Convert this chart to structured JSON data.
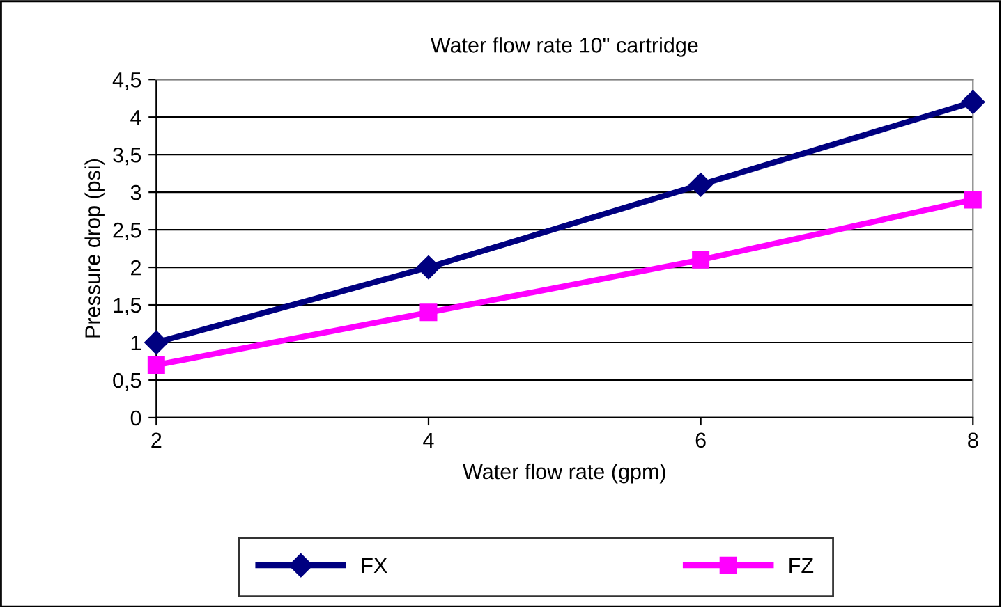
{
  "chart_data": {
    "type": "line",
    "title": "Water flow rate 10\" cartridge",
    "xlabel": "Water flow rate (gpm)",
    "ylabel": "Pressure drop (psi)",
    "x": [
      2,
      4,
      6,
      8
    ],
    "series": [
      {
        "name": "FX",
        "color": "#000080",
        "values": [
          1.0,
          2.0,
          3.1,
          4.2
        ],
        "marker": "diamond"
      },
      {
        "name": "FZ",
        "color": "#ff00ff",
        "values": [
          0.7,
          1.4,
          2.1,
          2.9
        ],
        "marker": "square"
      }
    ],
    "xlim": [
      2,
      8
    ],
    "xticks": [
      2,
      4,
      6,
      8
    ],
    "ylim": [
      0,
      4.5
    ],
    "yticks": [
      0,
      {
        "value": 0.5,
        "label": "0,5"
      },
      1,
      {
        "value": 1.5,
        "label": "1,5"
      },
      2,
      {
        "value": 2.5,
        "label": "2,5"
      },
      3,
      {
        "value": 3.5,
        "label": "3,5"
      },
      4,
      {
        "value": 4.5,
        "label": "4,5"
      }
    ],
    "grid": "y",
    "legend": "bottom",
    "line_style": "solid"
  }
}
